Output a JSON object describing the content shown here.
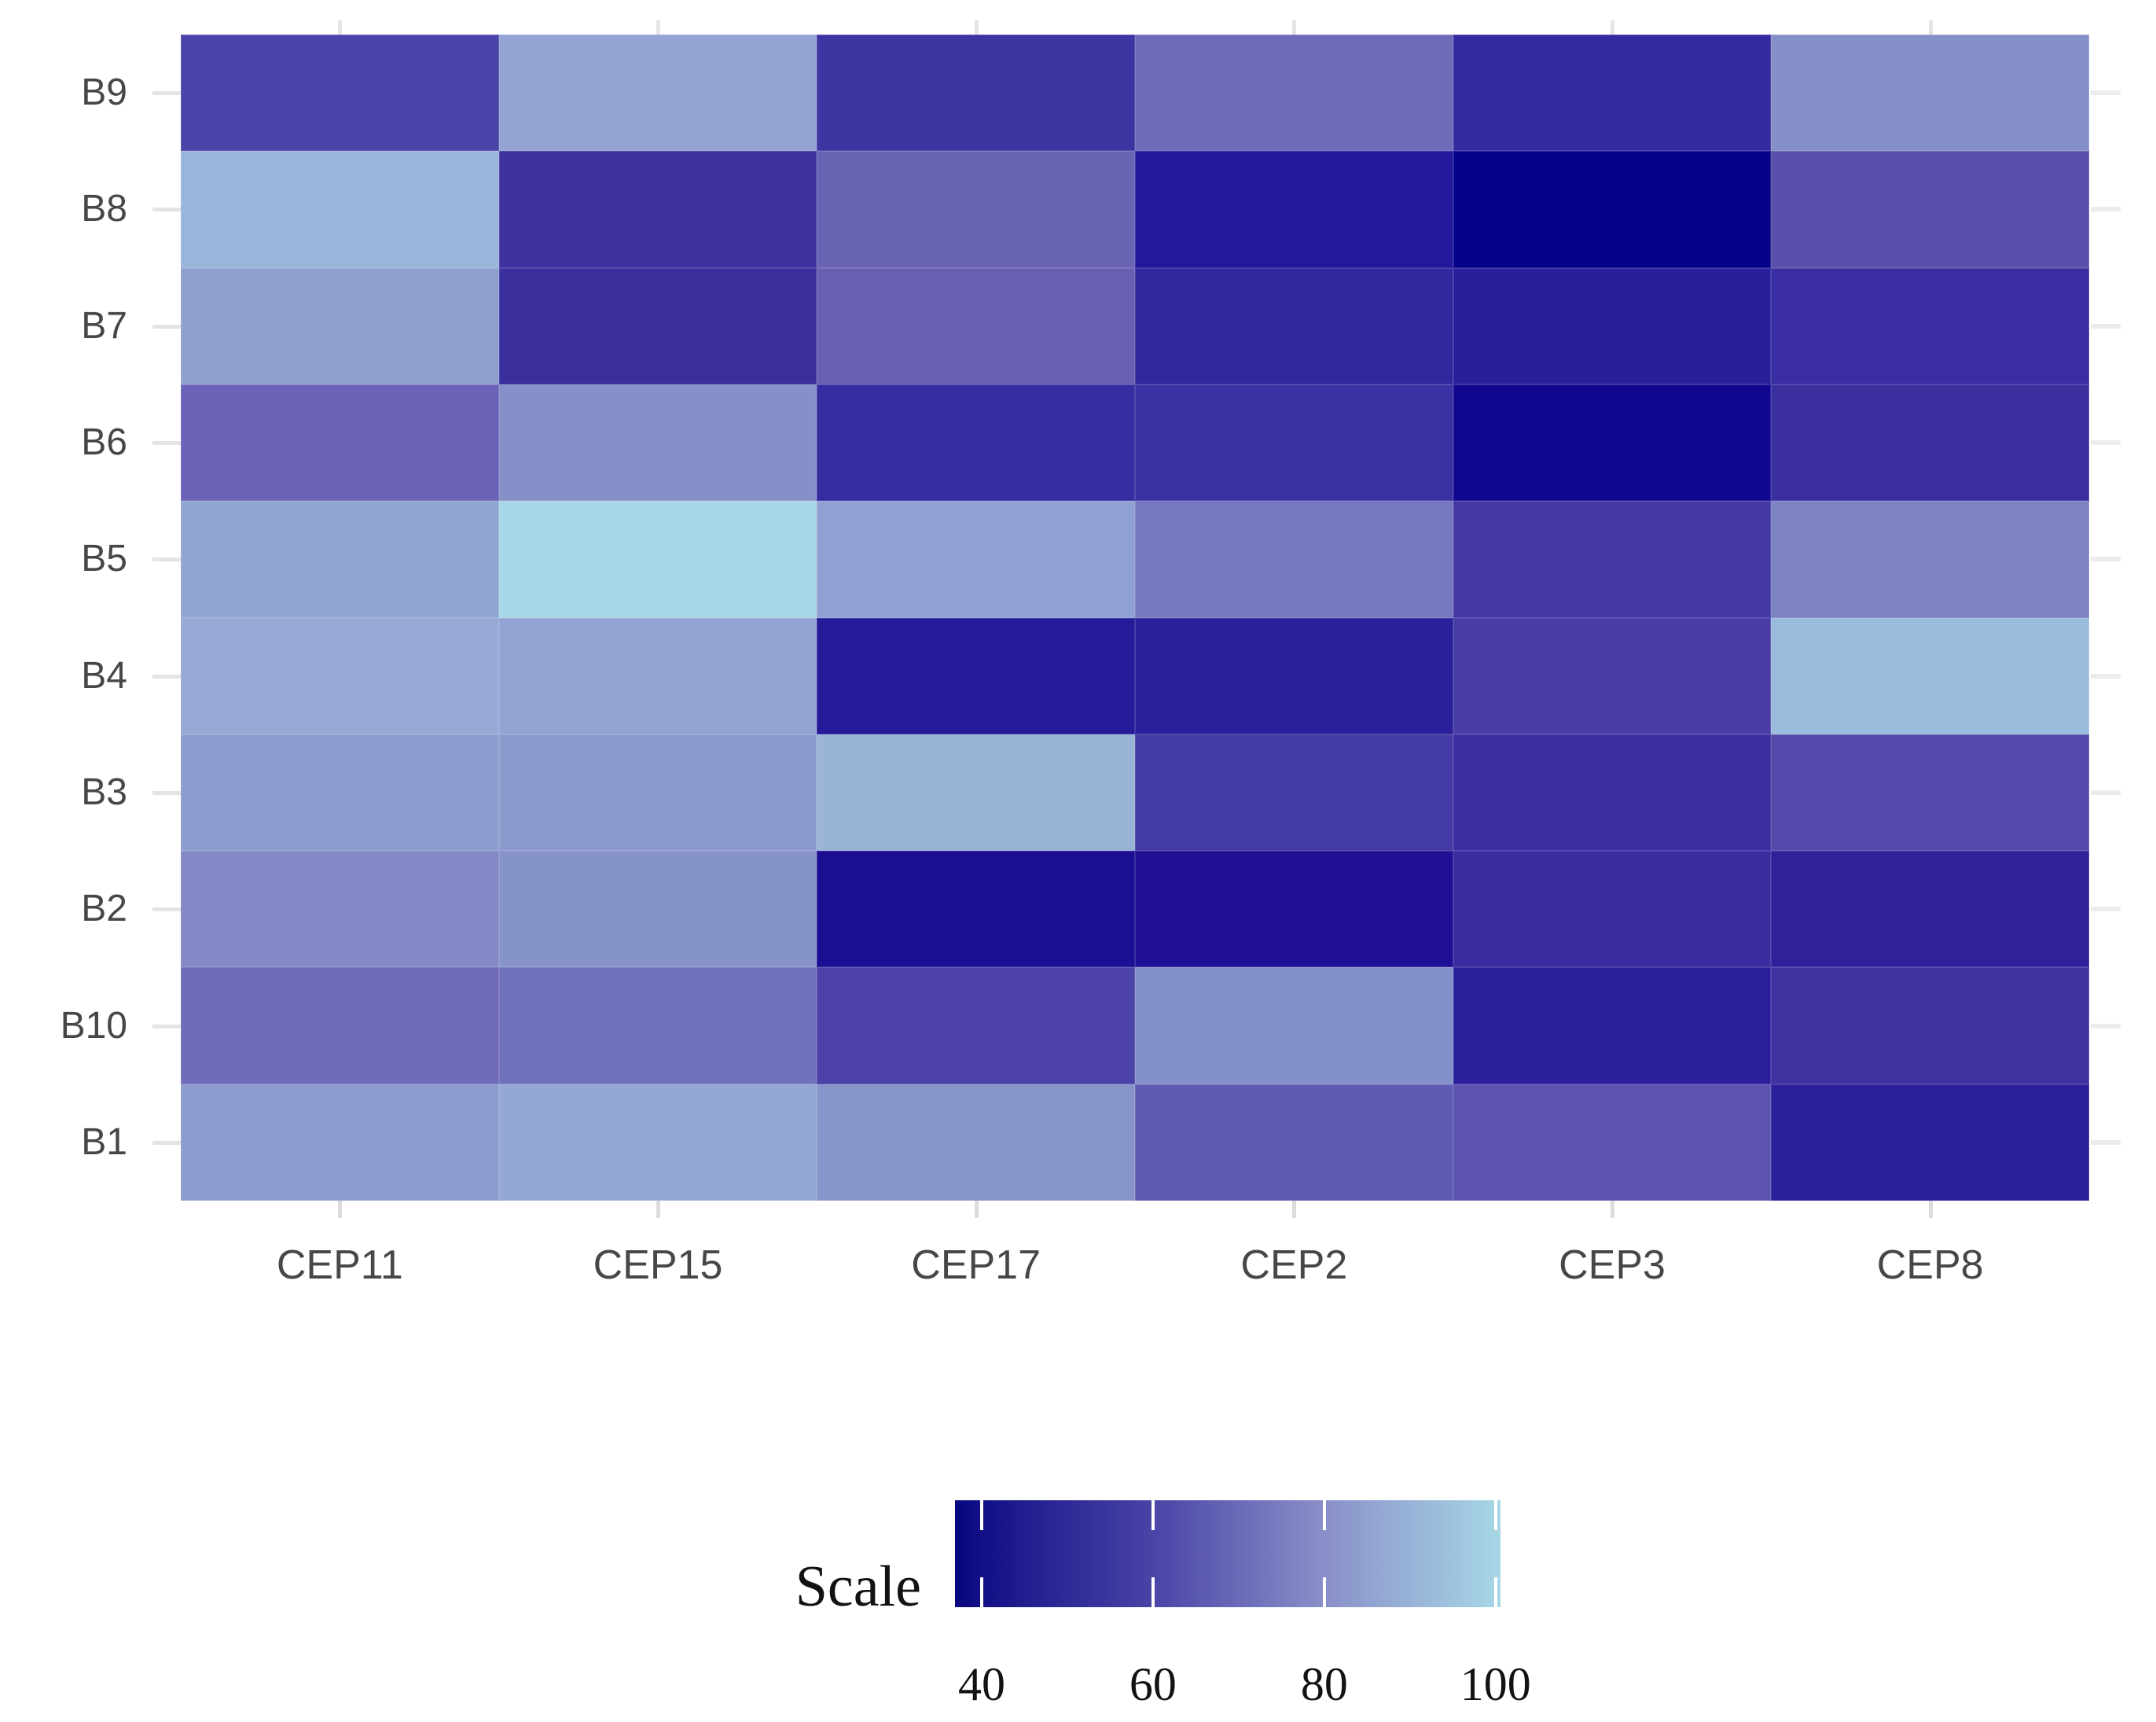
{
  "figure": {
    "background": "#ffffff"
  },
  "chart_data": {
    "type": "heatmap",
    "title": "",
    "xlabel": "",
    "ylabel": "",
    "x_categories": [
      "CEP11",
      "CEP15",
      "CEP17",
      "CEP2",
      "CEP3",
      "CEP8"
    ],
    "y_categories": [
      "B9",
      "B8",
      "B7",
      "B6",
      "B5",
      "B4",
      "B3",
      "B2",
      "B10",
      "B1"
    ],
    "series": [
      {
        "name": "B9",
        "values": [
          57,
          85,
          52,
          70,
          50,
          79
        ]
      },
      {
        "name": "B8",
        "values": [
          89,
          51,
          67,
          44,
          38,
          60
        ]
      },
      {
        "name": "B7",
        "values": [
          84,
          51,
          66,
          49,
          46,
          51
        ]
      },
      {
        "name": "B6",
        "values": [
          67,
          79,
          50,
          51,
          40,
          51
        ]
      },
      {
        "name": "B5",
        "values": [
          86,
          99,
          84,
          74,
          54,
          76
        ]
      },
      {
        "name": "B4",
        "values": [
          87,
          85,
          45,
          46,
          55,
          90
        ]
      },
      {
        "name": "B3",
        "values": [
          83,
          82,
          89,
          54,
          51,
          58
        ]
      },
      {
        "name": "B2",
        "values": [
          78,
          81,
          42,
          43,
          50,
          47
        ]
      },
      {
        "name": "B10",
        "values": [
          70,
          71,
          56,
          79,
          46,
          52
        ]
      },
      {
        "name": "B1",
        "values": [
          83,
          86,
          81,
          63,
          61,
          46
        ]
      }
    ],
    "cell_colors": [
      [
        "#4b44a8",
        "#93a4d4",
        "#3d35a0",
        "#6e6cb8",
        "#342aa0",
        "#8590c8"
      ],
      [
        "#9bb4da",
        "#3d32a0",
        "#6963b4",
        "#23189b",
        "#04038a",
        "#5a50ac"
      ],
      [
        "#8f9fd0",
        "#3b2f9e",
        "#665fb2",
        "#32279d",
        "#2a1f9a",
        "#3a2ea2"
      ],
      [
        "#6b63b8",
        "#8690c8",
        "#352ca0",
        "#3a31a2",
        "#11068e",
        "#3b2fa0"
      ],
      [
        "#92a6d2",
        "#a8d8e8",
        "#91a0d2",
        "#7677be",
        "#4338a4",
        "#7d82c2"
      ],
      [
        "#97aad6",
        "#92a2d2",
        "#251a97",
        "#2b1f9b",
        "#473da5",
        "#9bbbdc"
      ],
      [
        "#8c9cce",
        "#8c99cc",
        "#9ab4d8",
        "#443aa4",
        "#3a2ea0",
        "#544aac"
      ],
      [
        "#8389c6",
        "#8693c8",
        "#1c0e93",
        "#1f1095",
        "#392c9f",
        "#2e2199"
      ],
      [
        "#6f6bba",
        "#7172bc",
        "#4c42a8",
        "#8490c8",
        "#2c1f9c",
        "#3f33a2"
      ],
      [
        "#8d9cce",
        "#94a8d4",
        "#8795ca",
        "#615ab2",
        "#5b53ae",
        "#2b1f9b"
      ]
    ],
    "value_domain": [
      37,
      100
    ],
    "legend": {
      "title": "Scale",
      "tick_labels": [
        "40",
        "60",
        "80",
        "100"
      ],
      "tick_positions_pct": [
        4.9,
        36.3,
        67.7,
        99.1
      ],
      "low_color": "#06067e",
      "high_color": "#a8d8e7",
      "gradient_stops": [
        {
          "color": "#06067e",
          "pos": 0
        },
        {
          "color": "#121087",
          "pos": 4.9
        },
        {
          "color": "#4a44a7",
          "pos": 36.3
        },
        {
          "color": "#8a90c9",
          "pos": 67.7
        },
        {
          "color": "#a6d5e5",
          "pos": 99.1
        },
        {
          "color": "#a8d8e7",
          "pos": 100
        }
      ],
      "position": "bottom"
    },
    "axes": {
      "grid": false,
      "left_tick_color": "#e4e4e4",
      "top_tick_color": "#e4e4e4",
      "bottom_tick_color": "#dcdcdc",
      "right_tick_color": "#ececec",
      "label_color": "#474747"
    }
  }
}
